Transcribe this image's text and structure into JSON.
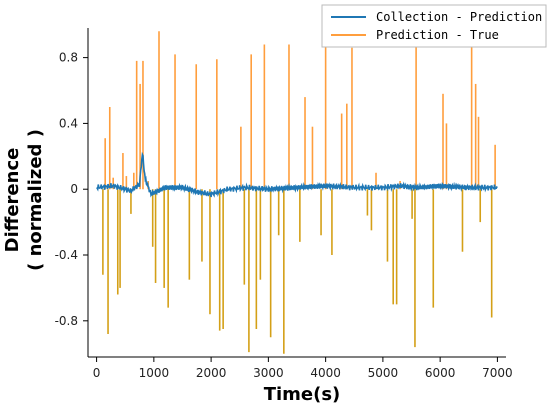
{
  "chart_data": {
    "type": "line",
    "xlabel": "Time(s)",
    "ylabel_line1": "Difference",
    "ylabel_line2": "( normalized )",
    "xlim": [
      -150,
      7150
    ],
    "ylim": [
      -1.02,
      0.98
    ],
    "x_ticks": [
      0,
      1000,
      2000,
      3000,
      4000,
      5000,
      6000,
      7000
    ],
    "x_tick_labels": [
      "0",
      "1000",
      "2000",
      "3000",
      "4000",
      "5000",
      "6000",
      "7000"
    ],
    "y_ticks": [
      0.8,
      0.4,
      0,
      -0.4,
      -0.8
    ],
    "y_tick_labels": [
      "0.8",
      "0.4",
      "0",
      "-0.4",
      "-0.8"
    ],
    "legend_position": "top-right",
    "series": [
      {
        "name": "Collection - Prediction",
        "color": "#1f77b4",
        "x": [
          0,
          300,
          600,
          750,
          800,
          850,
          950,
          1200,
          1500,
          1800,
          2000,
          2300,
          2600,
          3000,
          3500,
          4000,
          4500,
          5000,
          5300,
          5600,
          6000,
          6500,
          7000
        ],
        "y": [
          0.01,
          0.02,
          -0.01,
          0.03,
          0.22,
          0.06,
          -0.03,
          0.01,
          0.01,
          -0.02,
          -0.03,
          0.0,
          0.01,
          0.0,
          0.01,
          0.02,
          0.01,
          0.01,
          0.02,
          0.01,
          0.02,
          0.01,
          0.01
        ]
      },
      {
        "name": "Prediction - True",
        "color": "#ff9e3d",
        "spikes": [
          {
            "x": 110,
            "y": -0.52
          },
          {
            "x": 150,
            "y": 0.31
          },
          {
            "x": 200,
            "y": -0.88
          },
          {
            "x": 230,
            "y": 0.5
          },
          {
            "x": 290,
            "y": 0.07
          },
          {
            "x": 370,
            "y": -0.64
          },
          {
            "x": 410,
            "y": -0.6
          },
          {
            "x": 460,
            "y": 0.22
          },
          {
            "x": 520,
            "y": 0.08
          },
          {
            "x": 600,
            "y": -0.15
          },
          {
            "x": 650,
            "y": 0.1
          },
          {
            "x": 700,
            "y": 0.78
          },
          {
            "x": 760,
            "y": 0.64
          },
          {
            "x": 810,
            "y": 0.78
          },
          {
            "x": 900,
            "y": 0.05
          },
          {
            "x": 980,
            "y": -0.35
          },
          {
            "x": 1030,
            "y": -0.57
          },
          {
            "x": 1090,
            "y": 0.96
          },
          {
            "x": 1180,
            "y": -0.6
          },
          {
            "x": 1250,
            "y": -0.72
          },
          {
            "x": 1370,
            "y": 0.82
          },
          {
            "x": 1620,
            "y": -0.55
          },
          {
            "x": 1740,
            "y": 0.76
          },
          {
            "x": 1840,
            "y": -0.44
          },
          {
            "x": 1980,
            "y": -0.76
          },
          {
            "x": 2100,
            "y": 0.79
          },
          {
            "x": 2150,
            "y": -0.86
          },
          {
            "x": 2210,
            "y": -0.85
          },
          {
            "x": 2520,
            "y": 0.38
          },
          {
            "x": 2580,
            "y": -0.58
          },
          {
            "x": 2660,
            "y": -0.99
          },
          {
            "x": 2700,
            "y": 0.82
          },
          {
            "x": 2790,
            "y": -0.85
          },
          {
            "x": 2860,
            "y": -0.55
          },
          {
            "x": 2930,
            "y": 0.88
          },
          {
            "x": 3040,
            "y": -0.9
          },
          {
            "x": 3180,
            "y": -0.28
          },
          {
            "x": 3270,
            "y": -1.0
          },
          {
            "x": 3360,
            "y": 0.88
          },
          {
            "x": 3550,
            "y": -0.32
          },
          {
            "x": 3640,
            "y": 0.56
          },
          {
            "x": 3770,
            "y": 0.38
          },
          {
            "x": 3920,
            "y": -0.28
          },
          {
            "x": 4000,
            "y": 0.92
          },
          {
            "x": 4110,
            "y": -0.4
          },
          {
            "x": 4280,
            "y": 0.46
          },
          {
            "x": 4370,
            "y": 0.52
          },
          {
            "x": 4460,
            "y": 0.86
          },
          {
            "x": 4730,
            "y": -0.16
          },
          {
            "x": 4800,
            "y": -0.25
          },
          {
            "x": 4880,
            "y": 0.1
          },
          {
            "x": 5080,
            "y": -0.44
          },
          {
            "x": 5180,
            "y": -0.7
          },
          {
            "x": 5240,
            "y": -0.7
          },
          {
            "x": 5300,
            "y": 0.05
          },
          {
            "x": 5510,
            "y": -0.18
          },
          {
            "x": 5560,
            "y": -0.96
          },
          {
            "x": 5580,
            "y": 0.92
          },
          {
            "x": 5880,
            "y": -0.72
          },
          {
            "x": 6050,
            "y": 0.58
          },
          {
            "x": 6110,
            "y": 0.4
          },
          {
            "x": 6390,
            "y": -0.38
          },
          {
            "x": 6550,
            "y": 0.89
          },
          {
            "x": 6620,
            "y": 0.64
          },
          {
            "x": 6670,
            "y": 0.44
          },
          {
            "x": 6700,
            "y": -0.2
          },
          {
            "x": 6900,
            "y": -0.78
          },
          {
            "x": 6960,
            "y": 0.27
          }
        ]
      }
    ]
  }
}
